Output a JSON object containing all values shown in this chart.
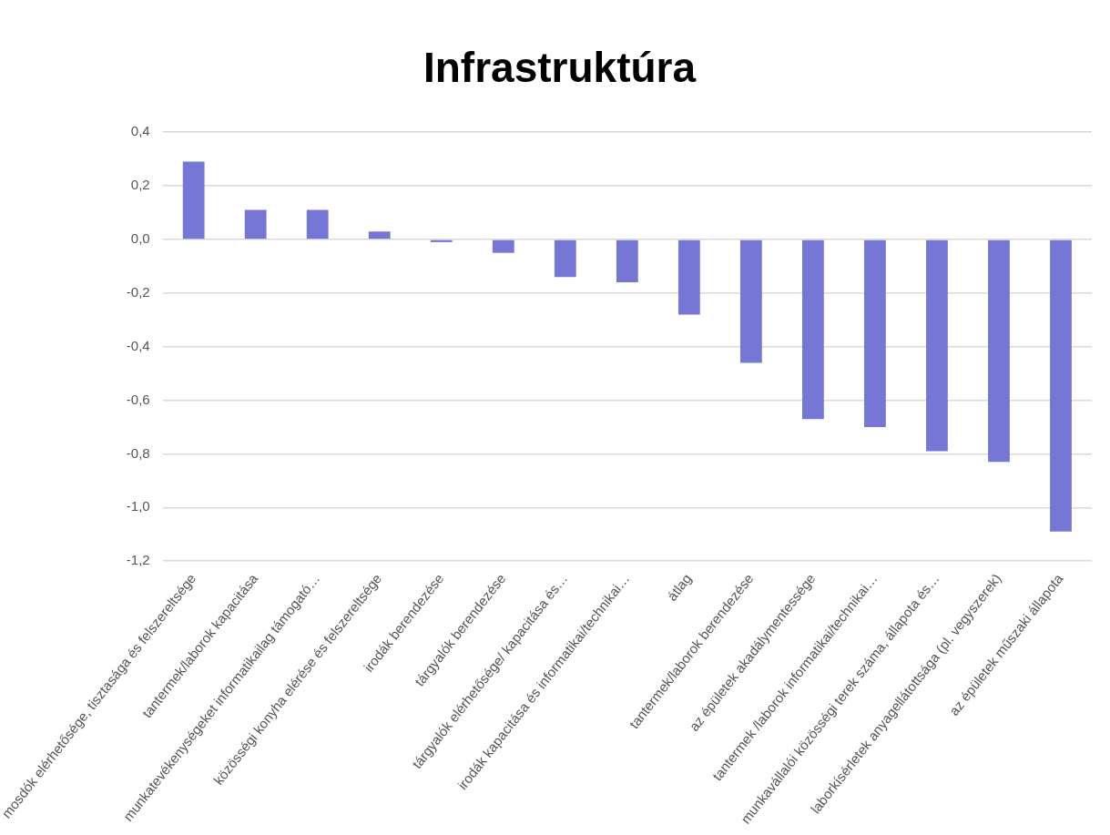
{
  "chart_data": {
    "type": "bar",
    "title": "Infrastruktúra",
    "categories": [
      "mosdók elérhetősége, tisztasága és felszereltsége",
      "tantermek/laborok kapacitása",
      "munkatevékenységeket informatikailag támogató…",
      "közösségi konyha elérése és felszereltsége",
      "irodák berendezése",
      "tárgyalók berendezése",
      "tárgyalók elérhetősége/ kapacitása és…",
      "irodák kapacitása és informatikai/technikai…",
      "átlag",
      "tantermek/laborok berendezése",
      "az épületek akadálymentessége",
      "tantermek /laborok informatikai/technikai…",
      "munkavállalói közösségi terek száma, állapota és…",
      "laborkísérletek anyagellátottsága (pl. vegyszerek)",
      "az épületek műszaki állapota"
    ],
    "values": [
      0.29,
      0.11,
      0.11,
      0.03,
      -0.01,
      -0.05,
      -0.14,
      -0.16,
      -0.28,
      -0.46,
      -0.67,
      -0.7,
      -0.79,
      -0.83,
      -1.09
    ],
    "color": "#7676d4",
    "ylim": [
      -1.2,
      0.4
    ],
    "yticks": [
      {
        "value": 0.4,
        "label": "0,4"
      },
      {
        "value": 0.2,
        "label": "0,2"
      },
      {
        "value": 0,
        "label": "0,0"
      },
      {
        "value": -0.2,
        "label": "-0,2"
      },
      {
        "value": -0.4,
        "label": "-0,4"
      },
      {
        "value": -0.6,
        "label": "-0,6"
      },
      {
        "value": -0.8,
        "label": "-0,8"
      },
      {
        "value": -1,
        "label": "-1,0"
      },
      {
        "value": -1.2,
        "label": "-1,2"
      }
    ],
    "grid": "y"
  }
}
